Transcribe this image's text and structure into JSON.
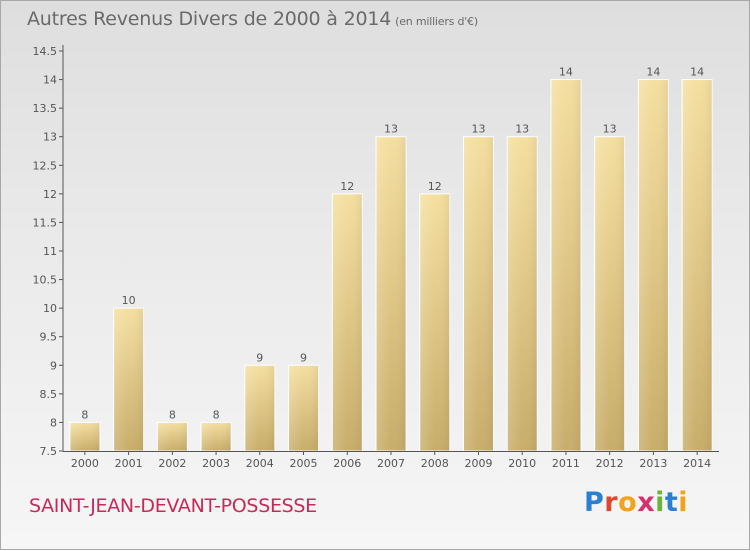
{
  "header": {
    "title": "Autres Revenus Divers de 2000 à 2014",
    "unit": "(en milliers d'€)"
  },
  "footer": {
    "location": "SAINT-JEAN-DEVANT-POSSESSE",
    "brand": "Proxiti",
    "brand_letters": [
      {
        "char": "P",
        "color": "#2b7fd0"
      },
      {
        "char": "r",
        "color": "#e0472f"
      },
      {
        "char": "o",
        "color": "#f3a21b"
      },
      {
        "char": "x",
        "color": "#d6316f"
      },
      {
        "char": "i",
        "color": "#6bb43a"
      },
      {
        "char": "t",
        "color": "#2b7fd0"
      },
      {
        "char": "i",
        "color": "#f3a21b"
      }
    ]
  },
  "colors": {
    "bar_top": "#f5dfa0",
    "bar_bottom": "#c8ad6a",
    "axis": "#555555",
    "tick_text": "#555555",
    "title": "#6a6a6a",
    "location": "#c8285a"
  },
  "chart_data": {
    "type": "bar",
    "title": "Autres Revenus Divers de 2000 à 2014",
    "subtitle": "(en milliers d'€)",
    "xlabel": "",
    "ylabel": "",
    "categories": [
      "2000",
      "2001",
      "2002",
      "2003",
      "2004",
      "2005",
      "2006",
      "2007",
      "2008",
      "2009",
      "2010",
      "2011",
      "2012",
      "2013",
      "2014"
    ],
    "values": [
      8,
      10,
      8,
      8,
      9,
      9,
      12,
      13,
      12,
      13,
      13,
      14,
      13,
      14,
      14
    ],
    "data_labels": [
      "8",
      "10",
      "8",
      "8",
      "9",
      "9",
      "12",
      "13",
      "12",
      "13",
      "13",
      "14",
      "13",
      "14",
      "14"
    ],
    "ylim": [
      7.5,
      14.5
    ],
    "yticks": [
      7.5,
      8,
      8.5,
      9,
      9.5,
      10,
      10.5,
      11,
      11.5,
      12,
      12.5,
      13,
      13.5,
      14,
      14.5
    ],
    "ytick_labels": [
      "7.5",
      "8",
      "8.5",
      "9",
      "9.5",
      "10",
      "10.5",
      "11",
      "11.5",
      "12",
      "12.5",
      "13",
      "13.5",
      "14",
      "14.5"
    ],
    "grid": false,
    "legend": "none"
  }
}
